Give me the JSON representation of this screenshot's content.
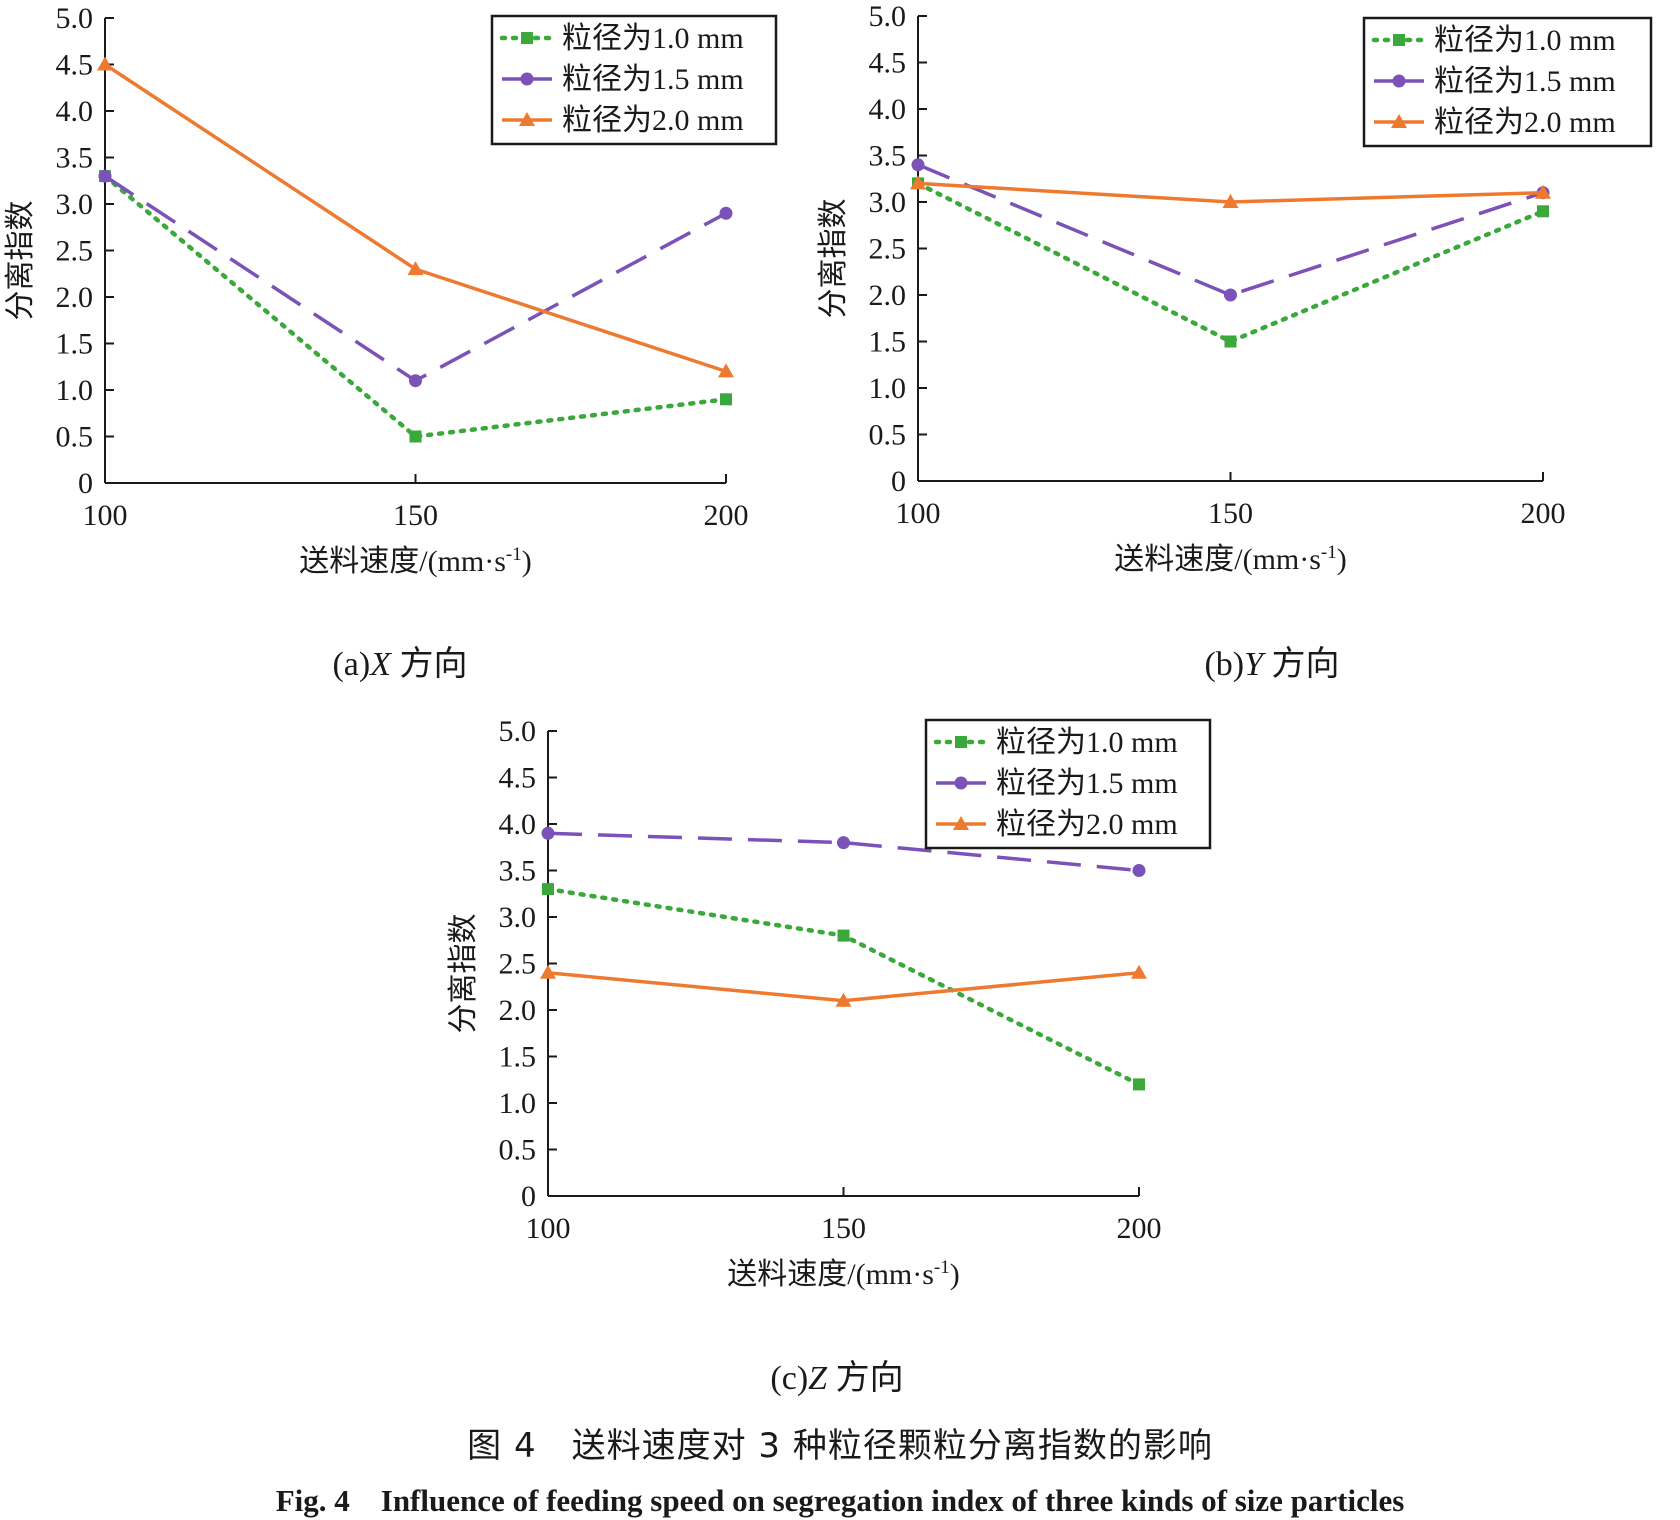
{
  "chart_data": [
    {
      "type": "line",
      "x": [
        100,
        150,
        200
      ],
      "xlabel": "送料速度/(mm·s",
      "xlabel_sup": "-1",
      "xlabel_close": ")",
      "ylabel": "分离指数",
      "xlim": [
        100,
        200
      ],
      "ylim": [
        0,
        5.0
      ],
      "x_ticks": [
        "100",
        "150",
        "200"
      ],
      "y_ticks": [
        "0",
        "0.5",
        "1.0",
        "1.5",
        "2.0",
        "2.5",
        "3.0",
        "3.5",
        "4.0",
        "4.5",
        "5.0"
      ],
      "legend_position": "top-right",
      "grid": false,
      "caption_prefix": "(a)",
      "caption_dir": "X",
      "caption_suffix": " 方向",
      "series": [
        {
          "name": "粒径为1.0 mm",
          "values": [
            3.3,
            0.5,
            0.9
          ],
          "color": "#3aa83a",
          "style": "dotted",
          "marker": "square"
        },
        {
          "name": "粒径为1.5 mm",
          "values": [
            3.3,
            1.1,
            2.9
          ],
          "color": "#7b52b8",
          "style": "dashed",
          "marker": "circle"
        },
        {
          "name": "粒径为2.0 mm",
          "values": [
            4.5,
            2.3,
            1.2
          ],
          "color": "#ee7a30",
          "style": "solid",
          "marker": "triangle"
        }
      ]
    },
    {
      "type": "line",
      "x": [
        100,
        150,
        200
      ],
      "xlabel": "送料速度/(mm·s",
      "xlabel_sup": "-1",
      "xlabel_close": ")",
      "ylabel": "分离指数",
      "xlim": [
        100,
        200
      ],
      "ylim": [
        0,
        5.0
      ],
      "x_ticks": [
        "100",
        "150",
        "200"
      ],
      "y_ticks": [
        "0",
        "0.5",
        "1.0",
        "1.5",
        "2.0",
        "2.5",
        "3.0",
        "3.5",
        "4.0",
        "4.5",
        "5.0"
      ],
      "legend_position": "top-right",
      "grid": false,
      "caption_prefix": "(b)",
      "caption_dir": "Y",
      "caption_suffix": " 方向",
      "series": [
        {
          "name": "粒径为1.0 mm",
          "values": [
            3.2,
            1.5,
            2.9
          ],
          "color": "#3aa83a",
          "style": "dotted",
          "marker": "square"
        },
        {
          "name": "粒径为1.5 mm",
          "values": [
            3.4,
            2.0,
            3.1
          ],
          "color": "#7b52b8",
          "style": "dashed",
          "marker": "circle"
        },
        {
          "name": "粒径为2.0 mm",
          "values": [
            3.2,
            3.0,
            3.1
          ],
          "color": "#ee7a30",
          "style": "solid",
          "marker": "triangle"
        }
      ]
    },
    {
      "type": "line",
      "x": [
        100,
        150,
        200
      ],
      "xlabel": "送料速度/(mm·s",
      "xlabel_sup": "-1",
      "xlabel_close": ")",
      "ylabel": "分离指数",
      "xlim": [
        100,
        200
      ],
      "ylim": [
        0,
        5.0
      ],
      "x_ticks": [
        "100",
        "150",
        "200"
      ],
      "y_ticks": [
        "0",
        "0.5",
        "1.0",
        "1.5",
        "2.0",
        "2.5",
        "3.0",
        "3.5",
        "4.0",
        "4.5",
        "5.0"
      ],
      "legend_position": "top-right",
      "grid": false,
      "caption_prefix": "(c)",
      "caption_dir": "Z",
      "caption_suffix": " 方向",
      "series": [
        {
          "name": "粒径为1.0 mm",
          "values": [
            3.3,
            2.8,
            1.2
          ],
          "color": "#3aa83a",
          "style": "dotted",
          "marker": "square"
        },
        {
          "name": "粒径为1.5 mm",
          "values": [
            3.9,
            3.8,
            3.5
          ],
          "color": "#7b52b8",
          "style": "dashed",
          "marker": "circle"
        },
        {
          "name": "粒径为2.0 mm",
          "values": [
            2.4,
            2.1,
            2.4
          ],
          "color": "#ee7a30",
          "style": "solid",
          "marker": "triangle"
        }
      ]
    }
  ],
  "figure": {
    "caption_cn": "图 4　送料速度对 3 种粒径颗粒分离指数的影响",
    "caption_en": "Fig. 4　Influence of feeding speed on segregation index of three kinds of size particles"
  }
}
